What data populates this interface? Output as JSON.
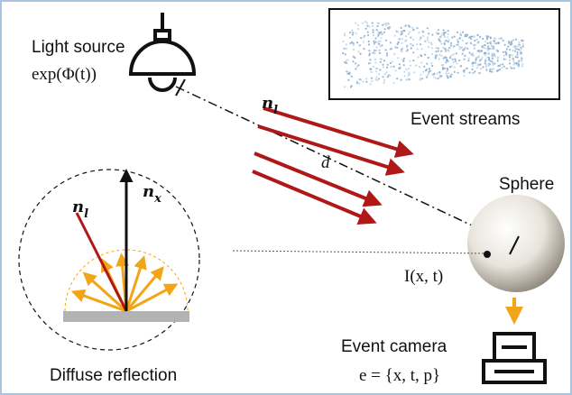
{
  "light_source": {
    "label": "Light source",
    "intensity": "exp(Φ(t))"
  },
  "incident_direction": {
    "base": "n",
    "sub": "l"
  },
  "distance": "d",
  "event_streams": {
    "label": "Event streams"
  },
  "sphere": {
    "label": "Sphere",
    "image": "I(x, t)"
  },
  "diffuse": {
    "label": "Diffuse reflection",
    "normal": {
      "base": "n",
      "sub": "x"
    },
    "incident": {
      "base": "n",
      "sub": "l"
    }
  },
  "event_camera": {
    "label": "Event camera",
    "event": "e = {x, t, p}"
  }
}
